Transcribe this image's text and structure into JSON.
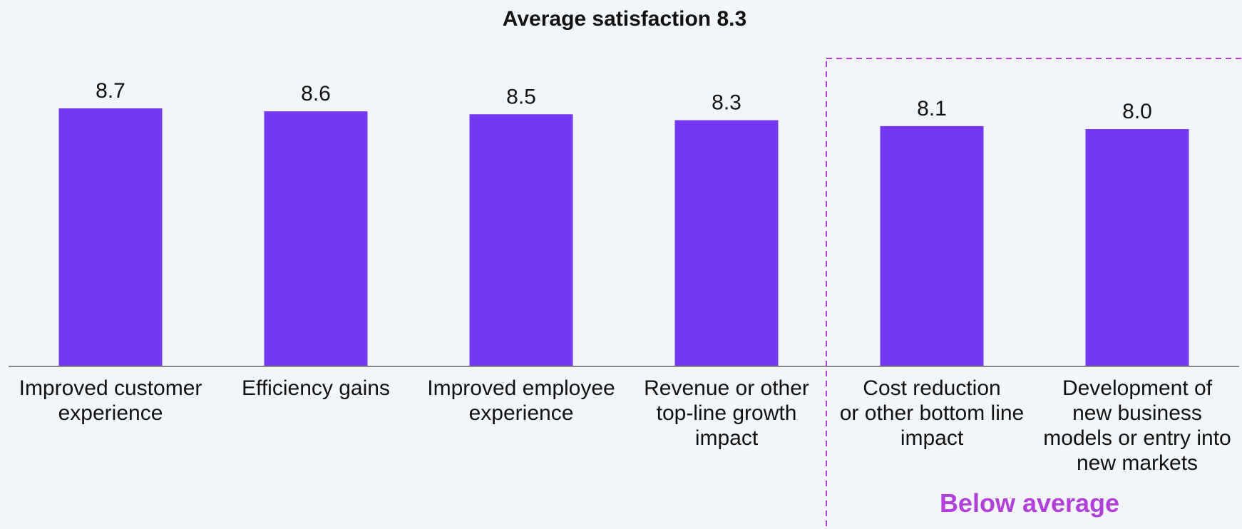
{
  "colors": {
    "background": "#f2f6f9",
    "bar": "#7637f2",
    "axis": "#888888",
    "highlight": "#b23fd9",
    "text": "#111111"
  },
  "chart_data": {
    "type": "bar",
    "title": "Average satisfaction 8.3",
    "xlabel": "",
    "ylabel": "",
    "ylim": [
      0,
      8.7
    ],
    "grid": false,
    "legend": "none",
    "categories": [
      [
        "Improved customer",
        "experience"
      ],
      [
        "Efficiency gains"
      ],
      [
        "Improved employee",
        "experience"
      ],
      [
        "Revenue or other",
        "top-line growth",
        "impact"
      ],
      [
        "Cost reduction",
        "or other bottom line",
        "impact"
      ],
      [
        "Development of",
        "new business",
        "models or entry into",
        "new markets"
      ]
    ],
    "values": [
      8.7,
      8.6,
      8.5,
      8.3,
      8.1,
      8.0
    ],
    "value_labels": [
      "8.7",
      "8.6",
      "8.5",
      "8.3",
      "8.1",
      "8.0"
    ],
    "annotation": {
      "label": "Below average",
      "categories": [
        4,
        5
      ]
    }
  }
}
